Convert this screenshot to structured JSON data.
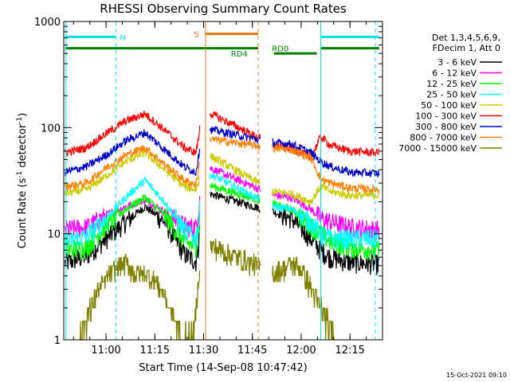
{
  "colors": {
    "axis": "#000000",
    "background": "#ffffff",
    "night": "#00e5ee",
    "saa": "#e07b10",
    "decimation": "#008000"
  },
  "chart_data": {
    "type": "line",
    "title": "RHESSI Observing Summary Count Rates",
    "xlabel": "Start Time (14-Sep-08 10:47:42)",
    "ylabel_parts": {
      "pre": "Count Rate (s",
      "sup1": "-1",
      "mid": " detector",
      "sup2": "-1",
      "post": ")"
    },
    "yscale": "log",
    "ylim": [
      1,
      1000
    ],
    "xlim": [
      10.7833,
      12.4167
    ],
    "x_units": "hours",
    "y_ticks": [
      {
        "v": 1,
        "label": "1"
      },
      {
        "v": 10,
        "label": "10"
      },
      {
        "v": 100,
        "label": "100"
      },
      {
        "v": 1000,
        "label": "1000"
      }
    ],
    "x_ticks": [
      {
        "v": 11.0,
        "label": "11:00"
      },
      {
        "v": 11.25,
        "label": "11:15"
      },
      {
        "v": 11.5,
        "label": "11:30"
      },
      {
        "v": 11.75,
        "label": "11:45"
      },
      {
        "v": 12.0,
        "label": "12:00"
      },
      {
        "v": 12.25,
        "label": "12:15"
      }
    ],
    "legend_header": [
      "Det 1,3,4,5,6,9,",
      "FDecim 1, Att 0"
    ],
    "legend_position": "right",
    "gaps": [
      [
        11.48,
        11.53
      ],
      [
        11.79,
        11.85
      ]
    ],
    "series": [
      {
        "name": "3 - 6 keV",
        "color": "#000000",
        "points": [
          [
            10.79,
            5.3
          ],
          [
            10.9,
            6.2
          ],
          [
            11.0,
            9
          ],
          [
            11.1,
            13
          ],
          [
            11.2,
            18
          ],
          [
            11.3,
            13
          ],
          [
            11.4,
            6.5
          ],
          [
            11.46,
            5.5
          ],
          [
            11.475,
            8
          ],
          [
            11.49,
            25
          ],
          [
            11.86,
            16
          ],
          [
            11.95,
            14
          ],
          [
            12.05,
            9
          ],
          [
            12.1,
            7
          ],
          [
            12.15,
            6
          ],
          [
            12.25,
            5.4
          ],
          [
            12.4,
            5.2
          ]
        ]
      },
      {
        "name": "6 - 12 keV",
        "color": "#ff00ff",
        "points": [
          [
            10.79,
            11
          ],
          [
            10.9,
            11.5
          ],
          [
            11.0,
            15
          ],
          [
            11.1,
            18
          ],
          [
            11.2,
            21
          ],
          [
            11.3,
            16
          ],
          [
            11.4,
            12
          ],
          [
            11.46,
            11.5
          ],
          [
            11.475,
            16
          ],
          [
            11.49,
            45
          ],
          [
            11.86,
            23
          ],
          [
            11.95,
            22
          ],
          [
            12.05,
            17
          ],
          [
            12.1,
            14
          ],
          [
            12.15,
            13
          ],
          [
            12.25,
            11.5
          ],
          [
            12.4,
            11
          ]
        ]
      },
      {
        "name": "12 - 25 keV",
        "color": "#00ff00",
        "points": [
          [
            10.79,
            7
          ],
          [
            10.9,
            7.5
          ],
          [
            11.0,
            12
          ],
          [
            11.1,
            17
          ],
          [
            11.2,
            22
          ],
          [
            11.3,
            15
          ],
          [
            11.4,
            8.5
          ],
          [
            11.46,
            7.5
          ],
          [
            11.475,
            11
          ],
          [
            11.49,
            30
          ],
          [
            11.86,
            19
          ],
          [
            11.95,
            17
          ],
          [
            12.05,
            12
          ],
          [
            12.1,
            10
          ],
          [
            12.15,
            8.5
          ],
          [
            12.25,
            7.5
          ],
          [
            12.4,
            7
          ]
        ]
      },
      {
        "name": "25 - 50 keV",
        "color": "#00ffff",
        "points": [
          [
            10.79,
            8.5
          ],
          [
            10.9,
            9.5
          ],
          [
            11.0,
            14
          ],
          [
            11.1,
            22
          ],
          [
            11.2,
            32
          ],
          [
            11.3,
            20
          ],
          [
            11.4,
            11
          ],
          [
            11.46,
            9
          ],
          [
            11.475,
            13
          ],
          [
            11.49,
            40
          ],
          [
            11.86,
            18
          ],
          [
            11.95,
            17
          ],
          [
            12.05,
            13
          ],
          [
            12.1,
            10
          ],
          [
            12.15,
            9
          ],
          [
            12.25,
            9
          ],
          [
            12.4,
            9
          ]
        ]
      },
      {
        "name": "50 - 100 keV",
        "color": "#cccc00",
        "points": [
          [
            10.79,
            24
          ],
          [
            10.9,
            26
          ],
          [
            11.0,
            35
          ],
          [
            11.1,
            48
          ],
          [
            11.2,
            58
          ],
          [
            11.3,
            40
          ],
          [
            11.4,
            28
          ],
          [
            11.46,
            26
          ],
          [
            11.475,
            30
          ],
          [
            11.49,
            60
          ],
          [
            11.86,
            25
          ],
          [
            11.95,
            24
          ],
          [
            12.05,
            20
          ],
          [
            12.1,
            28
          ],
          [
            12.15,
            25
          ],
          [
            12.25,
            23
          ],
          [
            12.4,
            23
          ]
        ]
      },
      {
        "name": "100 - 300 keV",
        "color": "#ff0000",
        "points": [
          [
            10.79,
            58
          ],
          [
            10.9,
            65
          ],
          [
            11.0,
            88
          ],
          [
            11.1,
            115
          ],
          [
            11.2,
            135
          ],
          [
            11.3,
            95
          ],
          [
            11.4,
            65
          ],
          [
            11.46,
            58
          ],
          [
            11.475,
            80
          ],
          [
            11.49,
            150
          ],
          [
            11.86,
            68
          ],
          [
            11.95,
            65
          ],
          [
            12.05,
            52
          ],
          [
            12.1,
            82
          ],
          [
            12.15,
            68
          ],
          [
            12.25,
            60
          ],
          [
            12.4,
            58
          ]
        ]
      },
      {
        "name": "300 - 800 keV",
        "color": "#0000cd",
        "points": [
          [
            10.79,
            38
          ],
          [
            10.9,
            43
          ],
          [
            11.0,
            55
          ],
          [
            11.1,
            75
          ],
          [
            11.2,
            90
          ],
          [
            11.3,
            62
          ],
          [
            11.4,
            43
          ],
          [
            11.46,
            38
          ],
          [
            11.475,
            55
          ],
          [
            11.49,
            100
          ],
          [
            11.86,
            72
          ],
          [
            11.95,
            70
          ],
          [
            12.05,
            58
          ],
          [
            12.1,
            48
          ],
          [
            12.15,
            43
          ],
          [
            12.25,
            38
          ],
          [
            12.4,
            37
          ]
        ]
      },
      {
        "name": "800 - 7000 keV",
        "color": "#ff8000",
        "points": [
          [
            10.79,
            28
          ],
          [
            10.9,
            30
          ],
          [
            11.0,
            42
          ],
          [
            11.1,
            55
          ],
          [
            11.2,
            65
          ],
          [
            11.3,
            45
          ],
          [
            11.4,
            32
          ],
          [
            11.46,
            29
          ],
          [
            11.475,
            40
          ],
          [
            11.49,
            80
          ],
          [
            11.86,
            64
          ],
          [
            11.95,
            62
          ],
          [
            12.05,
            52
          ],
          [
            12.1,
            33
          ],
          [
            12.15,
            30
          ],
          [
            12.25,
            27
          ],
          [
            12.4,
            26
          ]
        ]
      },
      {
        "name": "7000 - 15000 keV",
        "color": "#808000",
        "points": [
          [
            10.86,
            1
          ],
          [
            10.9,
            1.5
          ],
          [
            10.95,
            2.5
          ],
          [
            11.0,
            3.5
          ],
          [
            11.05,
            4.5
          ],
          [
            11.1,
            5
          ],
          [
            11.15,
            4
          ],
          [
            11.2,
            4
          ],
          [
            11.25,
            3.5
          ],
          [
            11.3,
            2.5
          ],
          [
            11.35,
            1.5
          ],
          [
            11.39,
            1
          ],
          [
            11.45,
            1
          ],
          [
            11.47,
            3
          ],
          [
            11.49,
            8
          ],
          [
            11.86,
            4
          ],
          [
            11.95,
            5
          ],
          [
            12.0,
            4.5
          ],
          [
            12.05,
            3
          ],
          [
            12.1,
            2
          ],
          [
            12.15,
            1.2
          ],
          [
            12.17,
            1
          ]
        ]
      }
    ],
    "flags": [
      {
        "name": "N",
        "color": "#00e5ee",
        "level": 715,
        "segments": [
          [
            10.79,
            11.05
          ],
          [
            12.1,
            12.4
          ]
        ],
        "label": "N",
        "label_x": 11.07
      },
      {
        "name": "S",
        "color": "#e07b10",
        "level": 765,
        "segments": [
          [
            11.51,
            11.78
          ]
        ],
        "label": "S",
        "label_x": 11.45
      },
      {
        "name": "RD0",
        "color": "#008000",
        "level": 560,
        "segments": [
          [
            10.79,
            11.78
          ],
          [
            12.1,
            12.4
          ]
        ],
        "label": "RD0",
        "label_x": 11.85
      },
      {
        "name": "RD4",
        "color": "#008000",
        "level": 500,
        "segments": [
          [
            11.86,
            12.08
          ]
        ],
        "label": "RD4",
        "label_x": 11.64
      }
    ],
    "vlines": [
      {
        "x": 11.05,
        "color": "#00e5ee",
        "style": "dashed"
      },
      {
        "x": 12.1,
        "color": "#00e5ee",
        "style": "solid"
      },
      {
        "x": 12.38,
        "color": "#00e5ee",
        "style": "dashed"
      },
      {
        "x": 10.795,
        "color": "#00e5ee",
        "style": "solid"
      },
      {
        "x": 11.51,
        "color": "#e07b10",
        "style": "solid"
      },
      {
        "x": 11.78,
        "color": "#e07b10",
        "style": "dashed"
      }
    ]
  },
  "footer": {
    "timestamp": "15-Oct-2021 09:10"
  }
}
